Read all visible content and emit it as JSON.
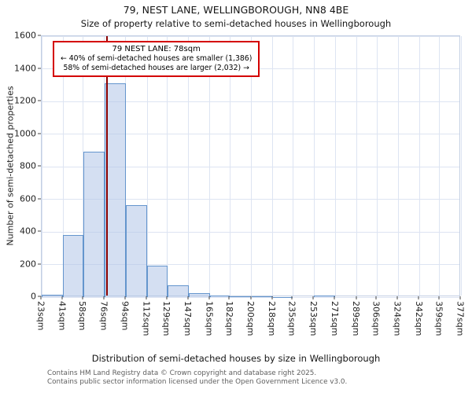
{
  "title": "79, NEST LANE, WELLINGBOROUGH, NN8 4BE",
  "subtitle": "Size of property relative to semi-detached houses in Wellingborough",
  "annotation": {
    "line1": "79 NEST LANE: 78sqm",
    "line2": "← 40% of semi-detached houses are smaller (1,386)",
    "line3": "58% of semi-detached houses are larger (2,032) →"
  },
  "footer": {
    "line1": "Contains HM Land Registry data © Crown copyright and database right 2025.",
    "line2": "Contains public sector information licensed under the Open Government Licence v3.0."
  },
  "chart_data": {
    "type": "bar",
    "title": "79, NEST LANE, WELLINGBOROUGH, NN8 4BE",
    "subtitle": "Size of property relative to semi-detached houses in Wellingborough",
    "xlabel": "Distribution of semi-detached houses by size in Wellingborough",
    "ylabel": "Number of semi-detached properties",
    "bin_edges": [
      23,
      41,
      58,
      76,
      94,
      112,
      129,
      147,
      165,
      182,
      200,
      218,
      235,
      253,
      271,
      289,
      306,
      324,
      342,
      359,
      377
    ],
    "bin_labels": [
      "23sqm",
      "41sqm",
      "58sqm",
      "76sqm",
      "94sqm",
      "112sqm",
      "129sqm",
      "147sqm",
      "165sqm",
      "182sqm",
      "200sqm",
      "218sqm",
      "235sqm",
      "253sqm",
      "271sqm",
      "289sqm",
      "306sqm",
      "324sqm",
      "342sqm",
      "359sqm",
      "377sqm"
    ],
    "values": [
      15,
      380,
      890,
      1310,
      565,
      195,
      70,
      25,
      10,
      5,
      3,
      2,
      0,
      8,
      0,
      0,
      0,
      0,
      0,
      0
    ],
    "ylim": [
      0,
      1600
    ],
    "yticks": [
      0,
      200,
      400,
      600,
      800,
      1000,
      1200,
      1400,
      1600
    ],
    "grid": true,
    "legend": "none",
    "marker": {
      "value": 78,
      "label": "79 NEST LANE: 78sqm",
      "color": "#8b0000"
    },
    "colors": {
      "bar_fill": "rgba(176,196,232,0.55)",
      "bar_edge": "#6495cd",
      "gridline": "#dde4f2",
      "annotation_border": "#d40000",
      "marker_line": "#8b0000"
    }
  }
}
